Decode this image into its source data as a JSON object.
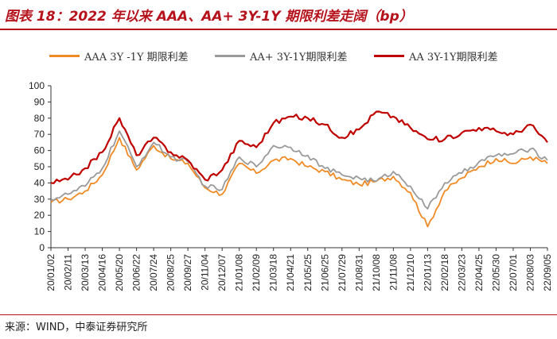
{
  "header": {
    "title": "图表 18：2022 年以来 AAA、AA+ 3Y-1Y 期限利差走阔（bp）"
  },
  "footer": {
    "source": "来源：WIND，中泰证券研究所"
  },
  "chart_data": {
    "type": "line",
    "ylim": [
      0,
      100
    ],
    "yticks": [
      0,
      10,
      20,
      30,
      40,
      50,
      60,
      70,
      80,
      90,
      100
    ],
    "categories": [
      "20/01/02",
      "20/02/11",
      "20/03/13",
      "20/04/16",
      "20/05/20",
      "20/06/22",
      "20/07/24",
      "20/08/25",
      "20/09/27",
      "20/11/04",
      "20/12/07",
      "21/01/08",
      "21/02/09",
      "21/03/18",
      "21/04/21",
      "21/05/25",
      "21/06/25",
      "21/07/29",
      "21/08/31",
      "21/10/08",
      "21/11/08",
      "21/12/10",
      "22/01/13",
      "22/02/18",
      "22/03/23",
      "22/04/25",
      "22/05/30",
      "22/07/01",
      "22/08/03",
      "22/09/05"
    ],
    "grid": false,
    "legend_position": "top",
    "series": [
      {
        "name": "AAA 3Y -1Y 期限利差",
        "color": "#f08a24",
        "values": [
          28,
          30,
          35,
          45,
          68,
          48,
          63,
          55,
          52,
          37,
          33,
          52,
          46,
          54,
          55,
          50,
          47,
          42,
          39,
          41,
          44,
          34,
          13,
          35,
          43,
          50,
          55,
          52,
          56,
          52
        ]
      },
      {
        "name": "AA+ 3Y-1Y期限利差",
        "color": "#9a9a9a",
        "values": [
          30,
          33,
          38,
          49,
          72,
          50,
          65,
          56,
          53,
          38,
          36,
          56,
          50,
          63,
          62,
          57,
          49,
          45,
          43,
          41,
          47,
          38,
          24,
          40,
          46,
          53,
          57,
          58,
          61,
          54
        ]
      },
      {
        "name": "AA 3Y-1Y期限利差",
        "color": "#c00000",
        "values": [
          40,
          42,
          49,
          59,
          80,
          57,
          68,
          59,
          54,
          42,
          48,
          66,
          62,
          77,
          81,
          80,
          76,
          68,
          73,
          84,
          81,
          74,
          67,
          67,
          71,
          74,
          72,
          70,
          76,
          65
        ]
      }
    ]
  }
}
